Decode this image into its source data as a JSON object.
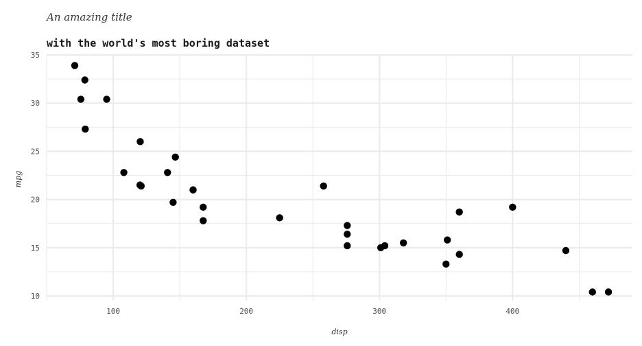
{
  "chart_data": {
    "type": "scatter",
    "title": "An amazing title",
    "subtitle": "with the world's most boring dataset",
    "xlabel": "disp",
    "ylabel": "mpg",
    "xlim": [
      50,
      490
    ],
    "ylim": [
      9.5,
      35
    ],
    "x_ticks": [
      100,
      200,
      300,
      400
    ],
    "y_ticks": [
      10,
      15,
      20,
      25,
      30,
      35
    ],
    "grid": true,
    "legend": "none",
    "point_color": "#000000",
    "points": [
      {
        "x": 160,
        "y": 21.0
      },
      {
        "x": 160,
        "y": 21.0
      },
      {
        "x": 108,
        "y": 22.8
      },
      {
        "x": 258,
        "y": 21.4
      },
      {
        "x": 360,
        "y": 18.7
      },
      {
        "x": 225,
        "y": 18.1
      },
      {
        "x": 360,
        "y": 14.3
      },
      {
        "x": 146.7,
        "y": 24.4
      },
      {
        "x": 140.8,
        "y": 22.8
      },
      {
        "x": 167.6,
        "y": 19.2
      },
      {
        "x": 167.6,
        "y": 17.8
      },
      {
        "x": 275.8,
        "y": 16.4
      },
      {
        "x": 275.8,
        "y": 17.3
      },
      {
        "x": 275.8,
        "y": 15.2
      },
      {
        "x": 472,
        "y": 10.4
      },
      {
        "x": 460,
        "y": 10.4
      },
      {
        "x": 440,
        "y": 14.7
      },
      {
        "x": 78.7,
        "y": 32.4
      },
      {
        "x": 75.7,
        "y": 30.4
      },
      {
        "x": 71.1,
        "y": 33.9
      },
      {
        "x": 120.1,
        "y": 21.5
      },
      {
        "x": 318,
        "y": 15.5
      },
      {
        "x": 304,
        "y": 15.2
      },
      {
        "x": 350,
        "y": 13.3
      },
      {
        "x": 400,
        "y": 19.2
      },
      {
        "x": 79,
        "y": 27.3
      },
      {
        "x": 120.3,
        "y": 26.0
      },
      {
        "x": 95.1,
        "y": 30.4
      },
      {
        "x": 351,
        "y": 15.8
      },
      {
        "x": 145,
        "y": 19.7
      },
      {
        "x": 301,
        "y": 15.0
      },
      {
        "x": 121,
        "y": 21.4
      }
    ]
  }
}
